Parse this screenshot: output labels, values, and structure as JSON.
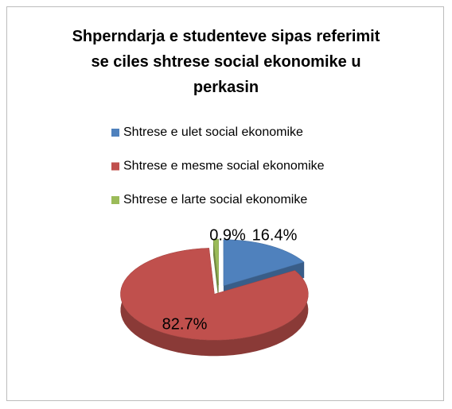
{
  "chart_data": {
    "type": "pie",
    "title": "Shperndarja e studenteve sipas referimit se ciles shtrese social ekonomike u perkasin",
    "categories": [
      "Shtrese e ulet social ekonomike",
      "Shtrese e mesme social ekonomike",
      "Shtrese e larte social ekonomike"
    ],
    "values": [
      16.4,
      82.7,
      0.9
    ],
    "value_labels": [
      "16.4%",
      "82.7%",
      "0.9%"
    ],
    "colors": [
      "#4f81bd",
      "#c0504d",
      "#9bbb59"
    ],
    "legend": "top"
  }
}
